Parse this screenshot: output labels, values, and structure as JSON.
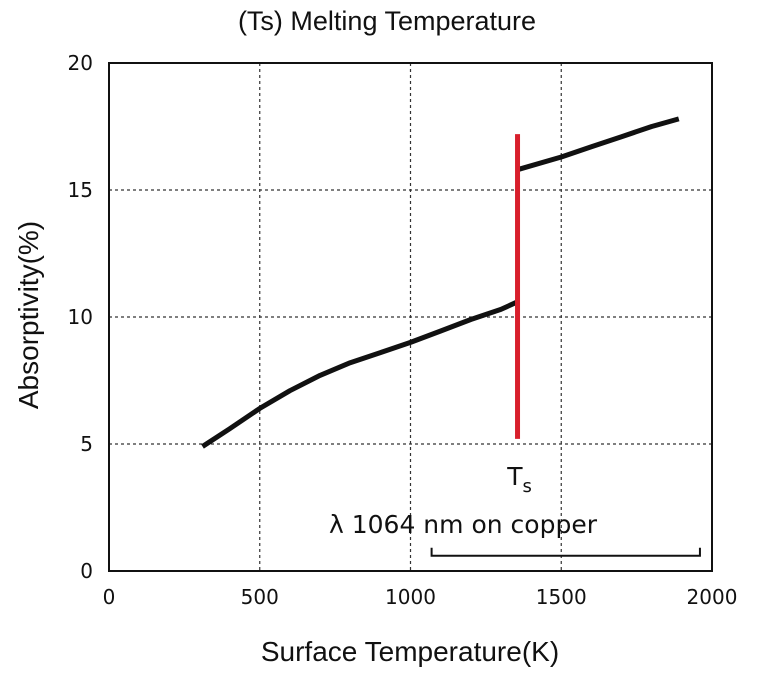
{
  "chart_data": {
    "type": "line",
    "title": "(Ts) Melting Temperature",
    "xlabel": "Surface Temperature(K)",
    "ylabel": "Absorptivity(%)",
    "xlim": [
      0,
      2000
    ],
    "ylim": [
      0,
      20
    ],
    "x_ticks": [
      0,
      500,
      1000,
      1500,
      2000
    ],
    "y_ticks": [
      0,
      5,
      10,
      15,
      20
    ],
    "x_tick_labels": [
      "0",
      "500",
      "1000",
      "1500",
      "2000"
    ],
    "y_tick_labels": [
      "0",
      "5",
      "10",
      "15",
      "20"
    ],
    "grid": true,
    "series": [
      {
        "color": "#111111",
        "x": [
          310,
          400,
          500,
          600,
          700,
          800,
          900,
          1000,
          1100,
          1200,
          1300,
          1355
        ],
        "y": [
          4.9,
          5.6,
          6.4,
          7.1,
          7.7,
          8.2,
          8.6,
          9.0,
          9.45,
          9.9,
          10.3,
          10.6
        ]
      },
      {
        "color": "#111111",
        "x": [
          1355,
          1500,
          1600,
          1700,
          1800,
          1890
        ],
        "y": [
          15.8,
          16.3,
          16.7,
          17.1,
          17.5,
          17.8
        ]
      }
    ],
    "annotations": {
      "melting_point": {
        "x": 1355,
        "y_range": [
          5.2,
          17.2
        ],
        "color": "#d81f2c",
        "label_main": "T",
        "label_sub": "s"
      },
      "condition": {
        "text": "λ 1064 nm on copper",
        "bracket_x": [
          1070,
          1960
        ],
        "bracket_y": 0.6
      }
    }
  }
}
